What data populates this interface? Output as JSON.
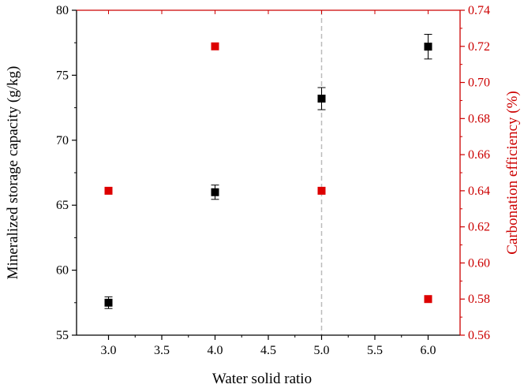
{
  "chart_data": {
    "type": "scatter",
    "xlabel": "Water solid ratio",
    "ylabel_left": "Mineralized storage capacity (g/kg)",
    "ylabel_right": "Carbonation efficiency (%)",
    "xlim": [
      2.7,
      6.3
    ],
    "ylim_left": [
      55,
      80
    ],
    "ylim_right": [
      0.56,
      0.74
    ],
    "x_ticks": [
      "3.0",
      "3.5",
      "4.0",
      "4.5",
      "5.0",
      "5.5",
      "6.0"
    ],
    "y_ticks_left": [
      "55",
      "60",
      "65",
      "70",
      "75",
      "80"
    ],
    "y_ticks_right": [
      "0.56",
      "0.58",
      "0.60",
      "0.62",
      "0.64",
      "0.66",
      "0.68",
      "0.70",
      "0.72",
      "0.74"
    ],
    "reference_line_x": 5.0,
    "series": [
      {
        "axis": "left",
        "color": "#000000",
        "marker": "square",
        "x": [
          3.0,
          4.0,
          5.0,
          6.0
        ],
        "y": [
          57.5,
          66.0,
          73.2,
          77.2
        ],
        "error": [
          0.45,
          0.55,
          0.85,
          0.95
        ]
      },
      {
        "axis": "right",
        "color": "#dd0000",
        "marker": "square",
        "x": [
          3.0,
          4.0,
          5.0,
          6.0
        ],
        "y": [
          0.64,
          0.72,
          0.64,
          0.58
        ]
      }
    ],
    "colors": {
      "left_axis": "#000000",
      "right_axis": "#cc0000",
      "reference_line": "#bbbbbb"
    }
  }
}
